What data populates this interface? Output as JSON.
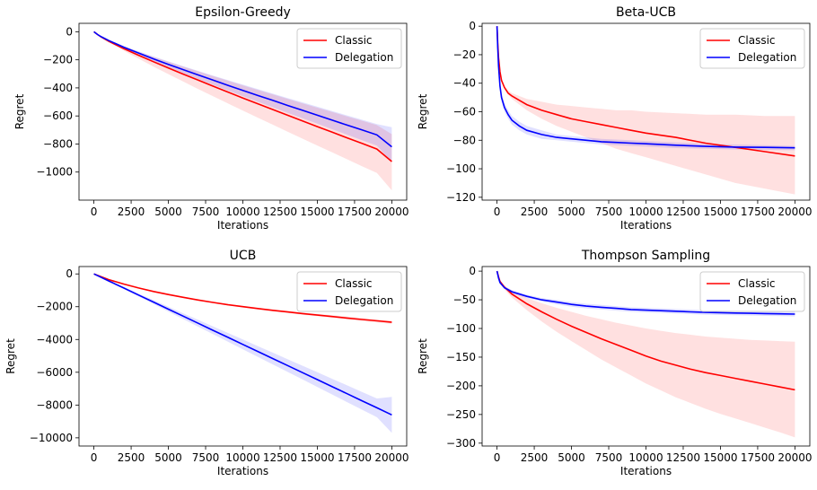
{
  "chart_data": [
    {
      "type": "line",
      "title": "Epsilon-Greedy",
      "xlabel": "Iterations",
      "ylabel": "Regret",
      "xlim": [
        -1000,
        21000
      ],
      "ylim": [
        -1200,
        60
      ],
      "xticks": [
        0,
        2500,
        5000,
        7500,
        10000,
        12500,
        15000,
        17500,
        20000
      ],
      "xtick_labels": [
        "0",
        "2500",
        "5000",
        "7500",
        "10000",
        "12500",
        "15000",
        "17500",
        "20000"
      ],
      "yticks": [
        0,
        -200,
        -400,
        -600,
        -800,
        -1000
      ],
      "ytick_labels": [
        "0",
        "−200",
        "−400",
        "−600",
        "−800",
        "−1000"
      ],
      "legend": "top-right",
      "grid": false,
      "x": [
        0,
        250,
        500,
        1000,
        2000,
        3000,
        4000,
        5000,
        6000,
        7000,
        8000,
        9000,
        10000,
        11000,
        12000,
        13000,
        14000,
        15000,
        16000,
        17000,
        18000,
        19000,
        20000
      ],
      "series": [
        {
          "name": "Classic",
          "color": "#ff0000",
          "values": [
            0,
            -20,
            -38,
            -68,
            -120,
            -168,
            -214,
            -258,
            -302,
            -345,
            -388,
            -430,
            -472,
            -513,
            -554,
            -595,
            -636,
            -676,
            -716,
            -756,
            -796,
            -836,
            -925
          ],
          "lower": [
            0,
            -22,
            -42,
            -75,
            -135,
            -192,
            -248,
            -302,
            -355,
            -408,
            -460,
            -511,
            -562,
            -612,
            -662,
            -712,
            -762,
            -811,
            -860,
            -909,
            -958,
            -1007,
            -1130
          ],
          "upper": [
            0,
            -18,
            -34,
            -61,
            -105,
            -144,
            -180,
            -214,
            -249,
            -282,
            -316,
            -349,
            -382,
            -414,
            -446,
            -478,
            -510,
            -541,
            -572,
            -603,
            -634,
            -665,
            -730
          ]
        },
        {
          "name": "Delegation",
          "color": "#0000ff",
          "values": [
            0,
            -20,
            -36,
            -63,
            -110,
            -152,
            -193,
            -232,
            -270,
            -308,
            -345,
            -382,
            -418,
            -454,
            -489,
            -525,
            -560,
            -595,
            -630,
            -665,
            -700,
            -735,
            -820
          ],
          "lower": [
            0,
            -22,
            -39,
            -68,
            -119,
            -165,
            -210,
            -253,
            -295,
            -337,
            -378,
            -419,
            -459,
            -499,
            -538,
            -578,
            -617,
            -656,
            -695,
            -734,
            -773,
            -812,
            -930
          ],
          "upper": [
            0,
            -18,
            -33,
            -58,
            -100,
            -139,
            -176,
            -211,
            -245,
            -279,
            -312,
            -345,
            -377,
            -409,
            -440,
            -472,
            -503,
            -534,
            -565,
            -596,
            -627,
            -658,
            -680
          ]
        }
      ]
    },
    {
      "type": "line",
      "title": "Beta-UCB",
      "xlabel": "Iterations",
      "ylabel": "Regret",
      "xlim": [
        -1000,
        21000
      ],
      "ylim": [
        -122,
        2
      ],
      "xticks": [
        0,
        2500,
        5000,
        7500,
        10000,
        12500,
        15000,
        17500,
        20000
      ],
      "xtick_labels": [
        "0",
        "2500",
        "5000",
        "7500",
        "10000",
        "12500",
        "15000",
        "17500",
        "20000"
      ],
      "yticks": [
        0,
        -20,
        -40,
        -60,
        -80,
        -100,
        -120
      ],
      "ytick_labels": [
        "0",
        "−20",
        "−40",
        "−60",
        "−80",
        "−100",
        "−120"
      ],
      "legend": "top-right",
      "grid": false,
      "x": [
        0,
        50,
        100,
        200,
        300,
        500,
        750,
        1000,
        1500,
        2000,
        3000,
        4000,
        5000,
        6000,
        7000,
        8000,
        9000,
        10000,
        12000,
        14000,
        16000,
        18000,
        20000
      ],
      "series": [
        {
          "name": "Classic",
          "color": "#ff0000",
          "values": [
            0,
            -12,
            -22,
            -32,
            -38,
            -43,
            -47,
            -49,
            -52,
            -55,
            -59,
            -62,
            -65,
            -67,
            -69,
            -71,
            -73,
            -75,
            -78,
            -82,
            -85,
            -88,
            -91
          ],
          "lower": [
            0,
            -12,
            -22,
            -33,
            -39,
            -44,
            -48,
            -51,
            -55,
            -59,
            -65,
            -70,
            -74,
            -78,
            -82,
            -86,
            -89,
            -92,
            -98,
            -104,
            -110,
            -114,
            -118
          ],
          "upper": [
            0,
            -12,
            -21,
            -31,
            -37,
            -42,
            -45,
            -47,
            -49,
            -51,
            -53,
            -55,
            -56,
            -57,
            -58,
            -59,
            -59,
            -60,
            -61,
            -62,
            -62,
            -63,
            -63
          ]
        },
        {
          "name": "Delegation",
          "color": "#0000ff",
          "values": [
            0,
            -15,
            -28,
            -42,
            -50,
            -57,
            -62,
            -66,
            -70,
            -73,
            -76,
            -78,
            -79,
            -80,
            -81,
            -81.5,
            -82,
            -82.5,
            -83.5,
            -84.3,
            -84.8,
            -85,
            -85.3
          ],
          "lower": [
            0,
            -16,
            -30,
            -45,
            -53,
            -60,
            -65,
            -69,
            -73,
            -76,
            -79,
            -80,
            -81,
            -82,
            -83,
            -83.5,
            -84,
            -84.5,
            -85.5,
            -86,
            -86.5,
            -86.8,
            -87
          ],
          "upper": [
            0,
            -14,
            -26,
            -39,
            -47,
            -54,
            -59,
            -63,
            -67,
            -70,
            -73,
            -76,
            -77,
            -78,
            -79,
            -79.5,
            -80,
            -80.5,
            -81.5,
            -82.5,
            -83,
            -83.5,
            -84
          ]
        }
      ]
    },
    {
      "type": "line",
      "title": "UCB",
      "xlabel": "Iterations",
      "ylabel": "Regret",
      "xlim": [
        -1000,
        21000
      ],
      "ylim": [
        -10500,
        450
      ],
      "xticks": [
        0,
        2500,
        5000,
        7500,
        10000,
        12500,
        15000,
        17500,
        20000
      ],
      "xtick_labels": [
        "0",
        "2500",
        "5000",
        "7500",
        "10000",
        "12500",
        "15000",
        "17500",
        "20000"
      ],
      "yticks": [
        0,
        -2000,
        -4000,
        -6000,
        -8000,
        -10000
      ],
      "ytick_labels": [
        "0",
        "−2000",
        "−4000",
        "−6000",
        "−8000",
        "−10000"
      ],
      "legend": "top-right",
      "grid": false,
      "x": [
        0,
        1000,
        2000,
        3000,
        4000,
        5000,
        6000,
        7000,
        8000,
        9000,
        10000,
        11000,
        12000,
        13000,
        14000,
        15000,
        16000,
        17000,
        18000,
        19000,
        20000
      ],
      "series": [
        {
          "name": "Classic",
          "color": "#ff0000",
          "values": [
            0,
            -350,
            -620,
            -860,
            -1070,
            -1260,
            -1430,
            -1590,
            -1740,
            -1880,
            -2000,
            -2110,
            -2220,
            -2320,
            -2420,
            -2510,
            -2600,
            -2690,
            -2780,
            -2860,
            -2950
          ],
          "lower": [
            0,
            -355,
            -630,
            -875,
            -1090,
            -1285,
            -1460,
            -1625,
            -1780,
            -1925,
            -2050,
            -2165,
            -2280,
            -2385,
            -2490,
            -2585,
            -2680,
            -2775,
            -2870,
            -2955,
            -3050
          ],
          "upper": [
            0,
            -345,
            -610,
            -845,
            -1050,
            -1235,
            -1400,
            -1555,
            -1700,
            -1835,
            -1950,
            -2055,
            -2160,
            -2255,
            -2350,
            -2435,
            -2520,
            -2605,
            -2690,
            -2765,
            -2850
          ]
        },
        {
          "name": "Delegation",
          "color": "#0000ff",
          "values": [
            0,
            -430,
            -860,
            -1290,
            -1720,
            -2150,
            -2580,
            -3010,
            -3440,
            -3870,
            -4300,
            -4730,
            -5160,
            -5590,
            -6020,
            -6450,
            -6880,
            -7310,
            -7740,
            -8170,
            -8600
          ],
          "lower": [
            0,
            -460,
            -920,
            -1380,
            -1840,
            -2300,
            -2760,
            -3220,
            -3680,
            -4140,
            -4600,
            -5060,
            -5520,
            -5980,
            -6440,
            -6900,
            -7360,
            -7820,
            -8280,
            -8740,
            -9700
          ],
          "upper": [
            0,
            -400,
            -800,
            -1200,
            -1600,
            -2000,
            -2400,
            -2800,
            -3200,
            -3600,
            -4000,
            -4400,
            -4800,
            -5200,
            -5600,
            -6000,
            -6400,
            -6800,
            -7200,
            -7600,
            -7500
          ]
        }
      ]
    },
    {
      "type": "line",
      "title": "Thompson Sampling",
      "xlabel": "Iterations",
      "ylabel": "Regret",
      "xlim": [
        -1000,
        21000
      ],
      "ylim": [
        -305,
        8
      ],
      "xticks": [
        0,
        2500,
        5000,
        7500,
        10000,
        12500,
        15000,
        17500,
        20000
      ],
      "xtick_labels": [
        "0",
        "2500",
        "5000",
        "7500",
        "10000",
        "12500",
        "15000",
        "17500",
        "20000"
      ],
      "yticks": [
        0,
        -50,
        -100,
        -150,
        -200,
        -250,
        -300
      ],
      "ytick_labels": [
        "0",
        "−50",
        "−100",
        "−150",
        "−200",
        "−250",
        "−300"
      ],
      "legend": "top-right",
      "grid": false,
      "x": [
        0,
        100,
        200,
        500,
        1000,
        2000,
        3000,
        4000,
        5000,
        6000,
        7000,
        8000,
        9000,
        10000,
        11000,
        12000,
        13000,
        14000,
        15000,
        16000,
        17000,
        18000,
        19000,
        20000
      ],
      "series": [
        {
          "name": "Classic",
          "color": "#ff0000",
          "values": [
            0,
            -10,
            -18,
            -28,
            -40,
            -57,
            -71,
            -84,
            -96,
            -107,
            -118,
            -128,
            -138,
            -148,
            -157,
            -164,
            -171,
            -177,
            -182,
            -187,
            -192,
            -197,
            -202,
            -207
          ],
          "lower": [
            0,
            -11,
            -20,
            -32,
            -46,
            -68,
            -88,
            -106,
            -122,
            -138,
            -154,
            -168,
            -182,
            -196,
            -208,
            -220,
            -230,
            -240,
            -249,
            -257,
            -265,
            -273,
            -281,
            -290
          ],
          "upper": [
            0,
            -9,
            -16,
            -25,
            -34,
            -47,
            -56,
            -64,
            -71,
            -78,
            -84,
            -90,
            -95,
            -100,
            -104,
            -108,
            -111,
            -114,
            -116,
            -118,
            -120,
            -121,
            -122,
            -123
          ]
        },
        {
          "name": "Delegation",
          "color": "#0000ff",
          "values": [
            0,
            -12,
            -20,
            -29,
            -36,
            -44,
            -50,
            -54,
            -58,
            -61,
            -63,
            -65,
            -67,
            -68,
            -69,
            -70,
            -71,
            -72,
            -72.5,
            -73,
            -73.5,
            -74,
            -74.5,
            -75
          ],
          "lower": [
            0,
            -13,
            -22,
            -31,
            -39,
            -47,
            -53,
            -58,
            -62,
            -65,
            -67,
            -69,
            -71,
            -72,
            -73,
            -74,
            -75,
            -76,
            -76.5,
            -77,
            -77.5,
            -78,
            -78.5,
            -79
          ],
          "upper": [
            0,
            -11,
            -18,
            -27,
            -33,
            -41,
            -47,
            -50,
            -54,
            -57,
            -59,
            -61,
            -63,
            -64,
            -65,
            -66,
            -67,
            -68,
            -68.5,
            -69,
            -69.5,
            -70,
            -70.5,
            -71
          ]
        }
      ]
    }
  ]
}
